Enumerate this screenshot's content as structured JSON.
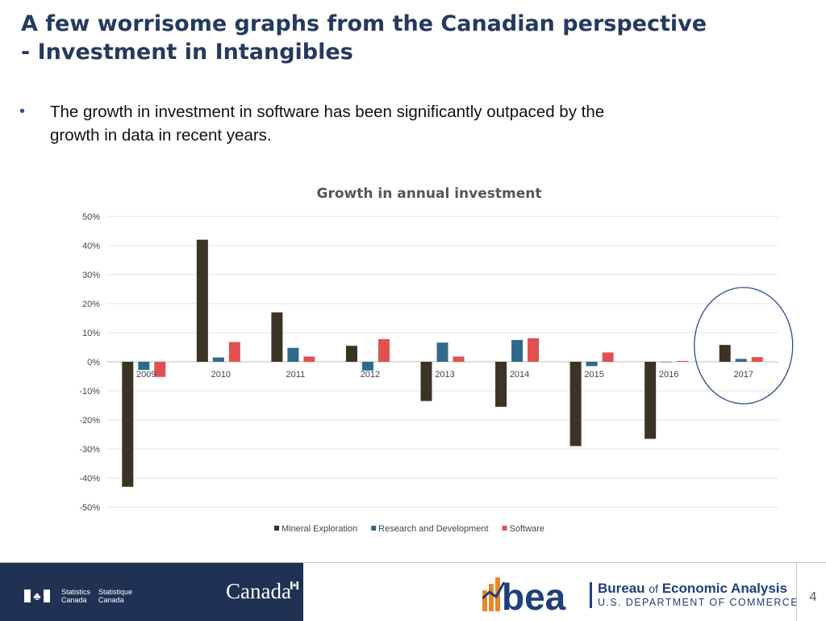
{
  "slide": {
    "title_line1": "A few worrisome graphs from the Canadian perspective",
    "title_line2": "- Investment in Intangibles",
    "bullet_symbol": "•",
    "bullet_text_line1": "The growth in investment in software has been significantly outpaced by the",
    "bullet_text_line2": "growth in data in recent years."
  },
  "chart_data": {
    "type": "bar",
    "title": "Growth in annual investment",
    "xlabel": "",
    "ylabel": "",
    "ylim": [
      -0.5,
      0.5
    ],
    "yticks": [
      0.5,
      0.4,
      0.3,
      0.2,
      0.1,
      0,
      -0.1,
      -0.2,
      -0.3,
      -0.4,
      -0.5
    ],
    "ytick_labels": [
      "50%",
      "40%",
      "30%",
      "20%",
      "10%",
      "0%",
      "-10%",
      "-20%",
      "-30%",
      "-40%",
      "-50%"
    ],
    "categories": [
      "2009",
      "2010",
      "2011",
      "2012",
      "2013",
      "2014",
      "2015",
      "2016",
      "2017"
    ],
    "series": [
      {
        "name": "Mineral Exploration",
        "color": "#3b3323",
        "values": [
          -0.43,
          0.42,
          0.17,
          0.055,
          -0.135,
          -0.155,
          -0.29,
          -0.265,
          0.058
        ]
      },
      {
        "name": "Research and Development",
        "color": "#2f6a8c",
        "values": [
          -0.028,
          0.015,
          0.048,
          -0.03,
          0.066,
          0.075,
          -0.015,
          0.0,
          0.01
        ]
      },
      {
        "name": "Software",
        "color": "#e05050",
        "values": [
          -0.052,
          0.068,
          0.018,
          0.078,
          0.018,
          0.081,
          0.032,
          0.003,
          0.016
        ]
      }
    ],
    "legend_position": "bottom",
    "grid": true,
    "highlight": {
      "category": "2017",
      "shape": "ellipse",
      "color": "#2c4a8c"
    }
  },
  "footer": {
    "statcan_en_line1": "Statistics",
    "statcan_en_line2": "Canada",
    "statcan_fr_line1": "Statistique",
    "statcan_fr_line2": "Canada",
    "canada_wordmark": "Canada",
    "bea_mark": "bea",
    "bea_name_part1": "Bureau ",
    "bea_name_of": "of",
    "bea_name_part2": " Economic Analysis",
    "bea_department": "U.S. DEPARTMENT OF COMMERCE",
    "page_number": "4"
  },
  "colors": {
    "title": "#243a5e",
    "footer_bg": "#1f3254",
    "bea_blue": "#1f3e7a",
    "bea_orange": "#e8882a"
  }
}
